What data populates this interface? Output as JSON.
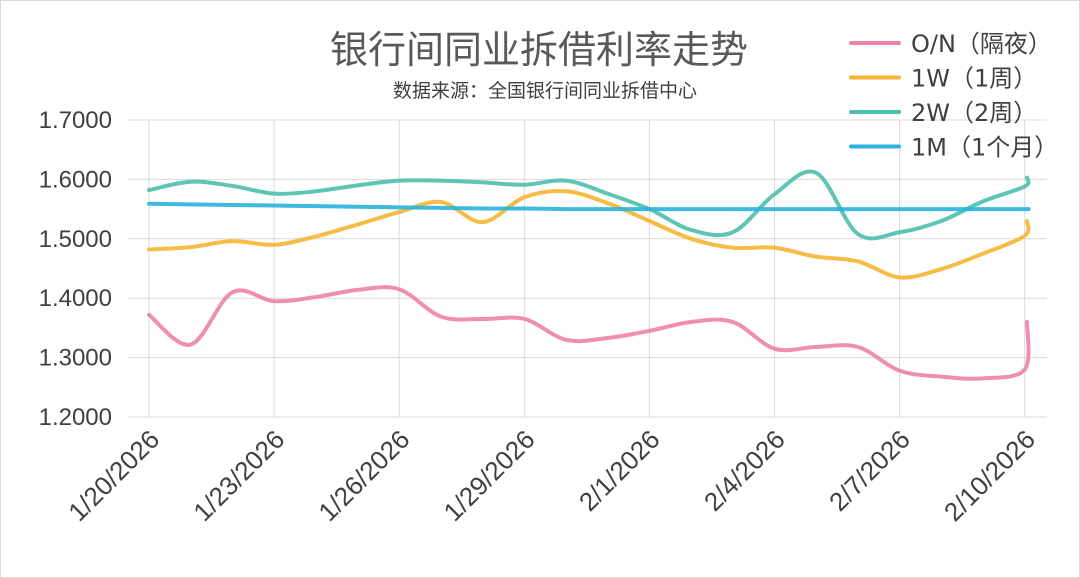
{
  "chart_data": {
    "type": "line",
    "title": "银行间同业拆借利率走势",
    "subtitle": "数据来源：全国银行间同业拆借中心",
    "x": [
      "1/20/2026",
      "1/21/2026",
      "1/22/2026",
      "1/23/2026",
      "1/24/2026",
      "1/25/2026",
      "1/26/2026",
      "1/27/2026",
      "1/28/2026",
      "1/29/2026",
      "1/30/2026",
      "1/31/2026",
      "2/1/2026",
      "2/2/2026",
      "2/3/2026",
      "2/4/2026",
      "2/5/2026",
      "2/6/2026",
      "2/7/2026",
      "2/8/2026",
      "2/9/2026",
      "2/10/2026"
    ],
    "x_tick_labels": [
      "1/20/2026",
      "1/23/2026",
      "1/26/2026",
      "1/29/2026",
      "2/1/2026",
      "2/4/2026",
      "2/7/2026",
      "2/10/2026"
    ],
    "ylim": [
      1.2,
      1.7
    ],
    "y_ticks": [
      "1.2000",
      "1.3000",
      "1.4000",
      "1.5000",
      "1.6000",
      "1.7000"
    ],
    "grid": true,
    "legend_position": "top-right",
    "series": [
      {
        "name": "O/N（隔夜）",
        "color": "#ee82a8",
        "values": [
          1.372,
          1.322,
          1.41,
          1.395,
          1.402,
          1.414,
          1.415,
          1.369,
          1.365,
          1.365,
          1.33,
          1.333,
          1.345,
          1.36,
          1.36,
          1.315,
          1.318,
          1.318,
          1.278,
          1.268,
          1.265,
          1.28
        ]
      },
      {
        "name": "1W（1周）",
        "color": "#f5b532",
        "values": [
          1.482,
          1.486,
          1.496,
          1.49,
          1.504,
          1.524,
          1.545,
          1.562,
          1.528,
          1.57,
          1.58,
          1.56,
          1.53,
          1.5,
          1.485,
          1.485,
          1.47,
          1.462,
          1.435,
          1.449,
          1.475,
          1.505
        ]
      },
      {
        "name": "2W（2周）",
        "color": "#4dbfad",
        "values": [
          1.582,
          1.596,
          1.589,
          1.576,
          1.58,
          1.59,
          1.598,
          1.598,
          1.595,
          1.591,
          1.598,
          1.576,
          1.55,
          1.515,
          1.511,
          1.575,
          1.611,
          1.508,
          1.511,
          1.53,
          1.563,
          1.588
        ]
      },
      {
        "name": "1M（1个月）",
        "color": "#29b3de",
        "values": [
          1.559,
          1.558,
          1.557,
          1.556,
          1.555,
          1.554,
          1.553,
          1.552,
          1.551,
          1.551,
          1.55,
          1.55,
          1.55,
          1.55,
          1.55,
          1.55,
          1.55,
          1.55,
          1.55,
          1.55,
          1.55,
          1.55
        ]
      }
    ],
    "last_point": {
      "x": "2/10/2026+",
      "values": [
        1.36,
        1.53,
        1.603,
        1.55
      ]
    }
  }
}
